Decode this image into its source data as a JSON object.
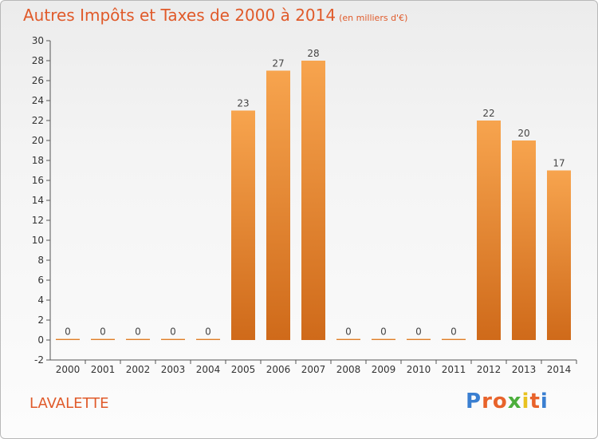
{
  "header": {
    "title": "Autres Impôts et Taxes de 2000 à 2014",
    "unit": "(en milliers d'€)"
  },
  "footer": {
    "commune": "LAVALETTE",
    "logo_text": "Proxiti"
  },
  "colors": {
    "title": "#e05a2a",
    "bar_light": "#f7a44e",
    "bar_dark": "#cf6a1a",
    "logo": [
      "#3a7fd1",
      "#e8632b",
      "#e8632b",
      "#4caf3c",
      "#e8c21f",
      "#e8632b",
      "#3a7fd1"
    ]
  },
  "chart_data": {
    "type": "bar",
    "categories": [
      "2000",
      "2001",
      "2002",
      "2003",
      "2004",
      "2005",
      "2006",
      "2007",
      "2008",
      "2009",
      "2010",
      "2011",
      "2012",
      "2013",
      "2014"
    ],
    "values": [
      0,
      0,
      0,
      0,
      0,
      23,
      27,
      28,
      0,
      0,
      0,
      0,
      22,
      20,
      17
    ],
    "ylim": [
      -2,
      30
    ],
    "yticks": [
      -2,
      0,
      2,
      4,
      6,
      8,
      10,
      12,
      14,
      16,
      18,
      20,
      22,
      24,
      26,
      28,
      30
    ],
    "grid": false
  }
}
